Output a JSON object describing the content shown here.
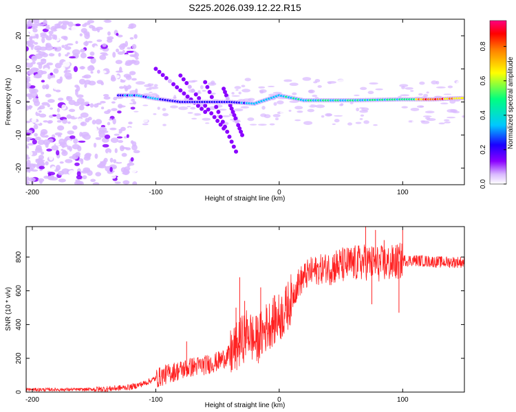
{
  "chart_data": [
    {
      "type": "heatmap",
      "title": "S225.2026.039.12.22.R15",
      "xlabel": "Height of straight line (km)",
      "ylabel": "Frequency (Hz)",
      "xlim": [
        -205,
        150
      ],
      "ylim": [
        -25,
        25
      ],
      "xticks": [
        -200,
        -100,
        0,
        100
      ],
      "yticks": [
        -20,
        -10,
        0,
        10,
        20
      ],
      "colorbar": {
        "label": "Normalized spectral amplitude",
        "range": [
          0.0,
          0.95
        ],
        "ticks": [
          "0.0",
          "0.2",
          "0.4",
          "0.6",
          "0.8"
        ],
        "colormap": [
          "#ffffff",
          "#d9b8ff",
          "#8a00ff",
          "#1a00ff",
          "#00c8ff",
          "#00ff80",
          "#ffff00",
          "#ff8000",
          "#ff0000",
          "#ff0080"
        ]
      },
      "trace": {
        "description_series": "dominant frequency ridge",
        "points": [
          {
            "x": -130,
            "freq": 2,
            "amp": 0.35
          },
          {
            "x": -115,
            "freq": 2,
            "amp": 0.4
          },
          {
            "x": -100,
            "freq": 1,
            "amp": 0.4
          },
          {
            "x": -80,
            "freq": 0,
            "amp": 0.35
          },
          {
            "x": -60,
            "freq": 0,
            "amp": 0.3
          },
          {
            "x": -40,
            "freq": 0,
            "amp": 0.35
          },
          {
            "x": -20,
            "freq": -0.5,
            "amp": 0.45
          },
          {
            "x": 0,
            "freq": 2,
            "amp": 0.45
          },
          {
            "x": 20,
            "freq": 0.5,
            "amp": 0.5
          },
          {
            "x": 60,
            "freq": 0.5,
            "amp": 0.5
          },
          {
            "x": 100,
            "freq": 0.8,
            "amp": 0.55
          },
          {
            "x": 125,
            "freq": 0.8,
            "amp": 0.85
          },
          {
            "x": 150,
            "freq": 1.2,
            "amp": 0.6
          }
        ]
      }
    },
    {
      "type": "line",
      "title": "",
      "xlabel": "Height of straight line (km)",
      "ylabel": "SNR (10 * v/v)",
      "xlim": [
        -205,
        150
      ],
      "ylim": [
        0,
        980
      ],
      "xticks": [
        -200,
        -100,
        0,
        100
      ],
      "yticks": [
        0,
        200,
        400,
        600,
        800
      ],
      "series": [
        {
          "name": "SNR",
          "color": "#ff2020",
          "x": [
            -205,
            -180,
            -160,
            -140,
            -120,
            -110,
            -100,
            -90,
            -80,
            -70,
            -60,
            -50,
            -40,
            -35,
            -30,
            -25,
            -20,
            -15,
            -10,
            -5,
            0,
            5,
            10,
            15,
            20,
            25,
            30,
            40,
            50,
            60,
            70,
            80,
            90,
            95,
            100,
            110,
            120,
            130,
            140,
            150
          ],
          "values": [
            15,
            15,
            15,
            18,
            30,
            50,
            80,
            110,
            130,
            150,
            160,
            180,
            220,
            260,
            310,
            360,
            300,
            330,
            390,
            420,
            440,
            480,
            560,
            640,
            680,
            710,
            720,
            740,
            750,
            760,
            770,
            760,
            760,
            770,
            780,
            780,
            775,
            770,
            770,
            770
          ]
        }
      ],
      "spikes": [
        {
          "x": -75,
          "y": 300
        },
        {
          "x": -35,
          "y": 500
        },
        {
          "x": -32,
          "y": 680
        },
        {
          "x": -28,
          "y": 540
        },
        {
          "x": -15,
          "y": 620
        },
        {
          "x": 5,
          "y": 600
        },
        {
          "x": 70,
          "y": 980
        },
        {
          "x": 75,
          "y": 520
        },
        {
          "x": 78,
          "y": 960
        },
        {
          "x": 85,
          "y": 900
        },
        {
          "x": 97,
          "y": 470
        },
        {
          "x": 100,
          "y": 960
        }
      ]
    }
  ]
}
